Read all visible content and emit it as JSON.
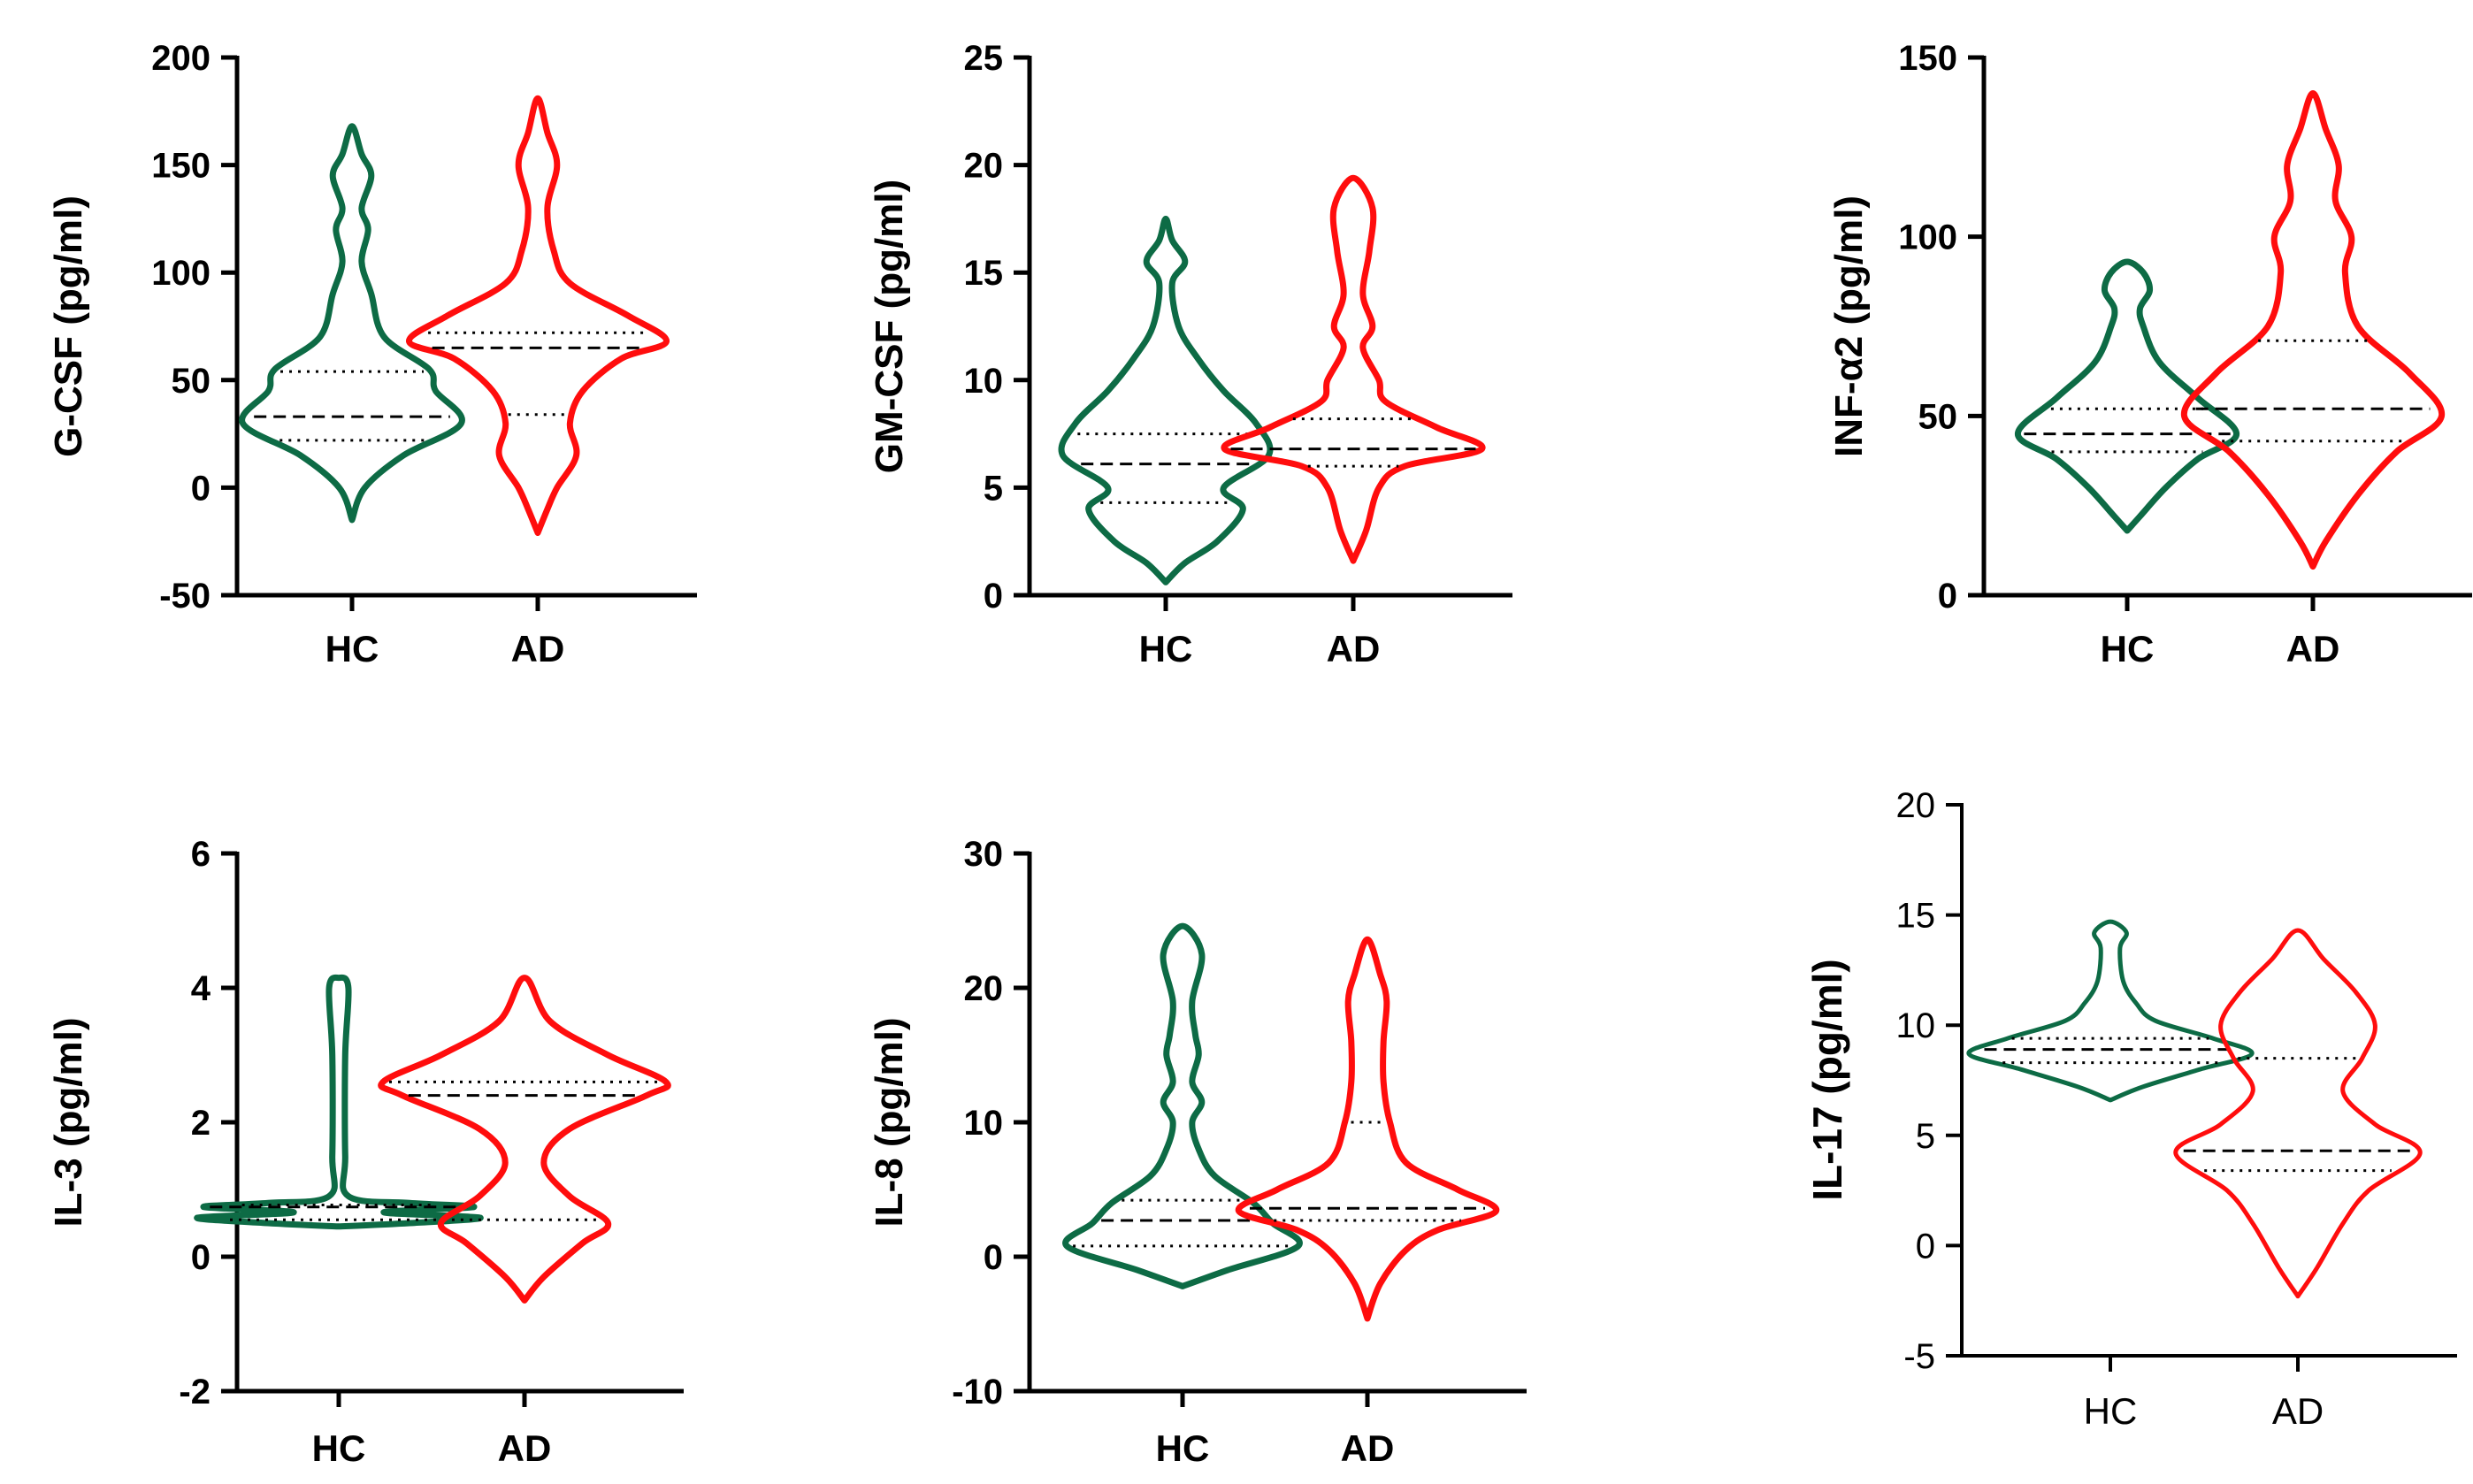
{
  "colors": {
    "HC": "#0d6b45",
    "AD": "#ff0d0d",
    "axis": "#000000",
    "median": "#000000"
  },
  "chart_data": [
    {
      "type": "violin",
      "ylabel": "G-CSF (pg/ml)",
      "ylim": [
        -50,
        200
      ],
      "yticks": [
        "-50",
        "0",
        "50",
        "100",
        "150",
        "200"
      ],
      "categories": [
        "HC",
        "AD"
      ],
      "series": [
        {
          "name": "HC",
          "median": 33,
          "q1": 22,
          "q3": 54,
          "min": -15,
          "max": 168,
          "density": [
            [
              -15,
              0
            ],
            [
              0,
              4
            ],
            [
              15,
              16
            ],
            [
              30,
              34
            ],
            [
              45,
              26
            ],
            [
              55,
              24
            ],
            [
              70,
              10
            ],
            [
              90,
              6
            ],
            [
              105,
              3
            ],
            [
              120,
              5
            ],
            [
              130,
              3
            ],
            [
              145,
              6
            ],
            [
              155,
              3
            ],
            [
              168,
              0
            ]
          ]
        },
        {
          "name": "AD",
          "median": 65,
          "q1": 34,
          "q3": 72,
          "min": -21,
          "max": 181,
          "density": [
            [
              -21,
              0
            ],
            [
              -10,
              3
            ],
            [
              0,
              6
            ],
            [
              15,
              12
            ],
            [
              30,
              10
            ],
            [
              45,
              14
            ],
            [
              60,
              26
            ],
            [
              68,
              40
            ],
            [
              80,
              28
            ],
            [
              95,
              10
            ],
            [
              110,
              5
            ],
            [
              130,
              3
            ],
            [
              150,
              6
            ],
            [
              165,
              3
            ],
            [
              181,
              0
            ]
          ]
        }
      ]
    },
    {
      "type": "violin",
      "ylabel": "GM-CSF (pg/ml)",
      "ylim": [
        0,
        25
      ],
      "yticks": [
        "0",
        "5",
        "10",
        "15",
        "20",
        "25"
      ],
      "categories": [
        "HC",
        "AD"
      ],
      "series": [
        {
          "name": "HC",
          "median": 6.1,
          "q1": 4.3,
          "q3": 7.5,
          "min": 0.6,
          "max": 17.5,
          "density": [
            [
              0.6,
              0
            ],
            [
              1.5,
              6
            ],
            [
              2.5,
              16
            ],
            [
              4,
              24
            ],
            [
              5,
              18
            ],
            [
              6.5,
              32
            ],
            [
              8,
              28
            ],
            [
              9.5,
              18
            ],
            [
              11,
              10
            ],
            [
              12.5,
              4
            ],
            [
              14.5,
              2
            ],
            [
              15.5,
              6
            ],
            [
              16.5,
              2
            ],
            [
              17.5,
              0
            ]
          ]
        },
        {
          "name": "AD",
          "median": 6.8,
          "q1": 6.0,
          "q3": 8.2,
          "min": 1.6,
          "max": 19.4,
          "density": [
            [
              1.6,
              0
            ],
            [
              3,
              4
            ],
            [
              5,
              8
            ],
            [
              6,
              16
            ],
            [
              6.8,
              40
            ],
            [
              7.8,
              26
            ],
            [
              9,
              10
            ],
            [
              10,
              8
            ],
            [
              11.5,
              3
            ],
            [
              12.5,
              6
            ],
            [
              14,
              3
            ],
            [
              16,
              5
            ],
            [
              18,
              6
            ],
            [
              19.4,
              0
            ]
          ]
        }
      ]
    },
    {
      "type": "violin",
      "ylabel": "INF-α2 (pg/ml)",
      "ylim": [
        0,
        150
      ],
      "yticks": [
        "0",
        "50",
        "100",
        "150"
      ],
      "categories": [
        "HC",
        "AD"
      ],
      "series": [
        {
          "name": "HC",
          "median": 45,
          "q1": 40,
          "q3": 52,
          "min": 18,
          "max": 93,
          "density": [
            [
              18,
              0
            ],
            [
              22,
              4
            ],
            [
              30,
              12
            ],
            [
              38,
              22
            ],
            [
              45,
              34
            ],
            [
              55,
              22
            ],
            [
              65,
              10
            ],
            [
              75,
              5
            ],
            [
              80,
              4
            ],
            [
              85,
              7
            ],
            [
              90,
              5
            ],
            [
              93,
              0
            ]
          ]
        },
        {
          "name": "AD",
          "median": 52,
          "q1": 43,
          "q3": 71,
          "min": 8,
          "max": 140,
          "density": [
            [
              8,
              0
            ],
            [
              15,
              4
            ],
            [
              28,
              14
            ],
            [
              40,
              26
            ],
            [
              50,
              40
            ],
            [
              62,
              30
            ],
            [
              75,
              14
            ],
            [
              90,
              10
            ],
            [
              100,
              12
            ],
            [
              110,
              7
            ],
            [
              120,
              8
            ],
            [
              130,
              4
            ],
            [
              140,
              0
            ]
          ]
        }
      ]
    },
    {
      "type": "violin",
      "ylabel": "IL-3 (pg/ml)",
      "ylim": [
        -2,
        6
      ],
      "yticks": [
        "-2",
        "0",
        "2",
        "4",
        "6"
      ],
      "categories": [
        "HC",
        "AD"
      ],
      "series": [
        {
          "name": "HC",
          "median": 0.74,
          "q1": 0.55,
          "q3": 0.77,
          "min": 0.45,
          "max": 4.15,
          "density": [
            [
              0.45,
              0
            ],
            [
              0.5,
              22
            ],
            [
              0.58,
              44
            ],
            [
              0.66,
              14
            ],
            [
              0.74,
              42
            ],
            [
              0.8,
              22
            ],
            [
              0.9,
              3
            ],
            [
              1.5,
              2
            ],
            [
              3.0,
              2
            ],
            [
              4.0,
              3
            ],
            [
              4.15,
              0
            ]
          ]
        },
        {
          "name": "AD",
          "median": 2.4,
          "q1": 0.55,
          "q3": 2.6,
          "min": -0.65,
          "max": 4.15,
          "density": [
            [
              -0.65,
              0
            ],
            [
              -0.3,
              6
            ],
            [
              0.2,
              18
            ],
            [
              0.5,
              26
            ],
            [
              0.9,
              14
            ],
            [
              1.4,
              6
            ],
            [
              1.9,
              14
            ],
            [
              2.4,
              38
            ],
            [
              2.6,
              44
            ],
            [
              3.0,
              26
            ],
            [
              3.5,
              8
            ],
            [
              4.15,
              0
            ]
          ]
        }
      ]
    },
    {
      "type": "violin",
      "ylabel": "IL-8 (pg/ml)",
      "ylim": [
        -10,
        30
      ],
      "yticks": [
        "-10",
        "0",
        "10",
        "20",
        "30"
      ],
      "categories": [
        "HC",
        "AD"
      ],
      "series": [
        {
          "name": "HC",
          "median": 2.7,
          "q1": 0.8,
          "q3": 4.2,
          "min": -2.2,
          "max": 24.6,
          "density": [
            [
              -2.2,
              0
            ],
            [
              -1,
              14
            ],
            [
              0.8,
              36
            ],
            [
              2.5,
              28
            ],
            [
              4,
              22
            ],
            [
              6,
              10
            ],
            [
              8,
              5
            ],
            [
              10,
              3
            ],
            [
              11.5,
              6
            ],
            [
              13,
              3
            ],
            [
              15,
              5
            ],
            [
              16.5,
              4
            ],
            [
              19,
              3
            ],
            [
              22.5,
              6
            ],
            [
              24.6,
              0
            ]
          ]
        },
        {
          "name": "AD",
          "median": 3.6,
          "q1": 2.7,
          "q3": 10.0,
          "min": -4.6,
          "max": 23.6,
          "density": [
            [
              -4.6,
              0
            ],
            [
              -2,
              4
            ],
            [
              0.5,
              12
            ],
            [
              2,
              22
            ],
            [
              3.4,
              40
            ],
            [
              5,
              28
            ],
            [
              7,
              12
            ],
            [
              10,
              7
            ],
            [
              13,
              5
            ],
            [
              16,
              5
            ],
            [
              19,
              6
            ],
            [
              21,
              4
            ],
            [
              23.6,
              0
            ]
          ]
        }
      ]
    },
    {
      "type": "violin",
      "ylabel": "IL-17 (pg/ml)",
      "ylim": [
        -5,
        20
      ],
      "yticks": [
        "-5",
        "0",
        "5",
        "10",
        "15",
        "20"
      ],
      "categories": [
        "HC",
        "AD"
      ],
      "series": [
        {
          "name": "HC",
          "median": 8.9,
          "q1": 8.3,
          "q3": 9.4,
          "min": 6.6,
          "max": 14.7,
          "density": [
            [
              6.6,
              0
            ],
            [
              7.2,
              10
            ],
            [
              8,
              28
            ],
            [
              8.7,
              44
            ],
            [
              9.4,
              32
            ],
            [
              10.2,
              14
            ],
            [
              11,
              8
            ],
            [
              12,
              4
            ],
            [
              13.5,
              3
            ],
            [
              14.2,
              5
            ],
            [
              14.7,
              0
            ]
          ]
        },
        {
          "name": "AD",
          "median": 4.3,
          "q1": 3.4,
          "q3": 8.5,
          "min": -2.3,
          "max": 14.3,
          "density": [
            [
              -2.3,
              0
            ],
            [
              -1,
              6
            ],
            [
              1,
              14
            ],
            [
              2.5,
              22
            ],
            [
              4.2,
              38
            ],
            [
              5.5,
              24
            ],
            [
              7,
              14
            ],
            [
              8.5,
              20
            ],
            [
              10,
              24
            ],
            [
              11.5,
              18
            ],
            [
              13,
              8
            ],
            [
              14.3,
              0
            ]
          ]
        }
      ]
    }
  ]
}
